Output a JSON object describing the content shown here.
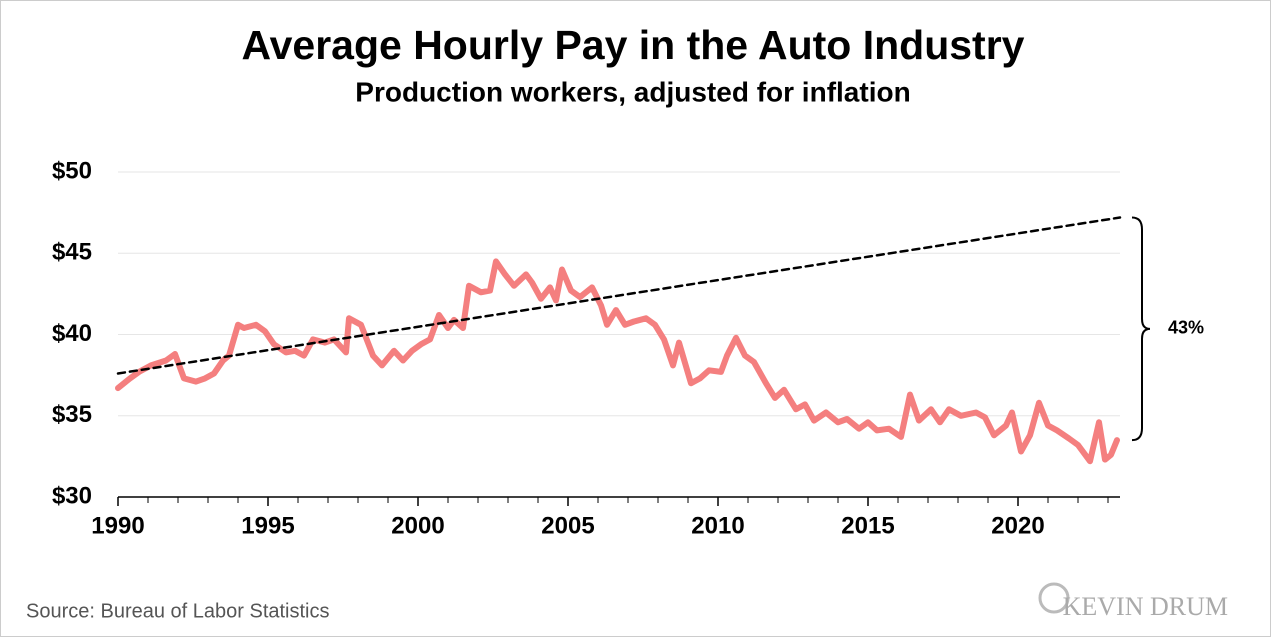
{
  "chart_data": {
    "type": "line",
    "title": "Average Hourly Pay in the Auto Industry",
    "subtitle": "Production workers, adjusted for inflation",
    "source": "Source: Bureau of Labor Statistics",
    "watermark": "KEVIN DRUM",
    "annotation": "43%",
    "x": [
      1990.0,
      1990.4,
      1990.7,
      1991.1,
      1991.6,
      1991.9,
      1992.2,
      1992.6,
      1992.9,
      1993.2,
      1993.5,
      1993.7,
      1994.0,
      1994.2,
      1994.6,
      1994.9,
      1995.2,
      1995.6,
      1995.9,
      1996.2,
      1996.5,
      1996.9,
      1997.2,
      1997.6,
      1997.7,
      1998.1,
      1998.5,
      1998.8,
      1999.2,
      1999.5,
      1999.8,
      2000.1,
      2000.4,
      2000.7,
      2001.0,
      2001.2,
      2001.5,
      2001.7,
      2002.1,
      2002.4,
      2002.6,
      2002.9,
      2003.2,
      2003.6,
      2003.8,
      2004.1,
      2004.4,
      2004.6,
      2004.8,
      2005.1,
      2005.4,
      2005.8,
      2006.1,
      2006.3,
      2006.6,
      2006.9,
      2007.2,
      2007.6,
      2007.9,
      2008.2,
      2008.5,
      2008.7,
      2009.1,
      2009.4,
      2009.7,
      2010.1,
      2010.3,
      2010.6,
      2010.9,
      2011.2,
      2011.6,
      2011.9,
      2012.2,
      2012.6,
      2012.9,
      2013.2,
      2013.6,
      2014.0,
      2014.3,
      2014.7,
      2015.0,
      2015.3,
      2015.7,
      2016.1,
      2016.4,
      2016.7,
      2017.1,
      2017.4,
      2017.7,
      2018.1,
      2018.6,
      2018.9,
      2019.2,
      2019.6,
      2019.8,
      2020.1,
      2020.4,
      2020.7,
      2021.0,
      2021.3,
      2021.7,
      2022.0,
      2022.4,
      2022.7,
      2022.9,
      2023.1,
      2023.3
    ],
    "series": [
      {
        "color": "#f47f7f",
        "values": [
          36.7,
          37.3,
          37.7,
          38.1,
          38.4,
          38.8,
          37.3,
          37.1,
          37.3,
          37.6,
          38.4,
          38.7,
          40.6,
          40.4,
          40.6,
          40.2,
          39.4,
          38.9,
          39.0,
          38.7,
          39.7,
          39.5,
          39.7,
          38.9,
          41.0,
          40.6,
          38.7,
          38.1,
          39.0,
          38.4,
          39.0,
          39.4,
          39.7,
          41.2,
          40.4,
          40.9,
          40.4,
          43.0,
          42.6,
          42.7,
          44.5,
          43.7,
          43.0,
          43.7,
          43.2,
          42.2,
          42.9,
          42.1,
          44.0,
          42.7,
          42.3,
          42.9,
          41.8,
          40.6,
          41.5,
          40.6,
          40.8,
          41.0,
          40.6,
          39.7,
          38.1,
          39.5,
          37.0,
          37.3,
          37.8,
          37.7,
          38.7,
          39.8,
          38.7,
          38.3,
          37.0,
          36.1,
          36.6,
          35.4,
          35.7,
          34.7,
          35.2,
          34.6,
          34.8,
          34.2,
          34.6,
          34.1,
          34.2,
          33.7,
          36.3,
          34.7,
          35.4,
          34.6,
          35.4,
          35.0,
          35.2,
          34.9,
          33.8,
          34.4,
          35.2,
          32.8,
          33.8,
          35.8,
          34.4,
          34.1,
          33.6,
          33.2,
          32.2,
          34.6,
          32.3,
          32.6,
          33.5
        ]
      }
    ],
    "trend": {
      "color": "#000000",
      "x": [
        1990,
        2023.4
      ],
      "values": [
        37.6,
        47.2
      ]
    },
    "xlim": [
      1990,
      2023.4
    ],
    "xticks": [
      1990,
      1995,
      2000,
      2005,
      2010,
      2015,
      2020
    ],
    "xminorticks": [
      1991,
      1992,
      1993,
      1994,
      1996,
      1997,
      1998,
      1999,
      2001,
      2002,
      2003,
      2004,
      2006,
      2007,
      2008,
      2009,
      2011,
      2012,
      2013,
      2014,
      2016,
      2017,
      2018,
      2019,
      2021,
      2022,
      2023
    ],
    "ylim": [
      30,
      50
    ],
    "yticks": [
      {
        "value": 30,
        "label": "$30"
      },
      {
        "value": 35,
        "label": "$35"
      },
      {
        "value": 40,
        "label": "$40"
      },
      {
        "value": 45,
        "label": "$45"
      },
      {
        "value": 50,
        "label": "$50"
      }
    ],
    "grid": true
  }
}
